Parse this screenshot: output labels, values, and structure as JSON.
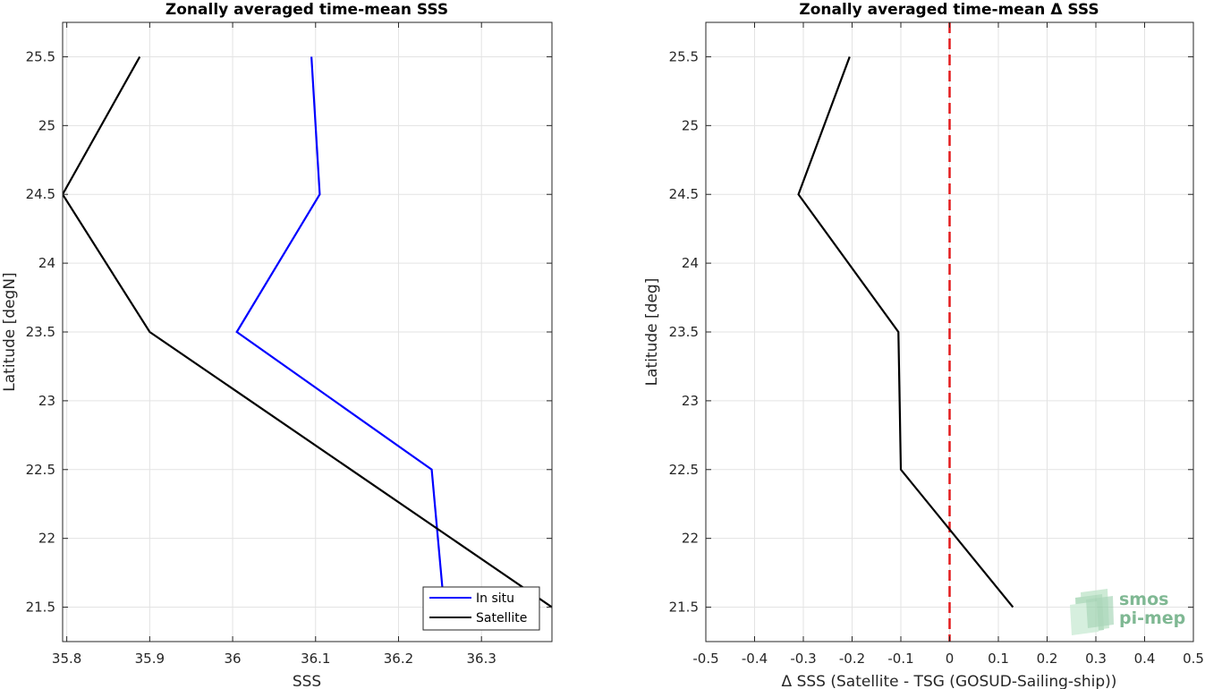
{
  "chart_data": [
    {
      "type": "line",
      "title": "Zonally averaged time-mean SSS",
      "xlabel": "SSS",
      "ylabel": "Latitude [degN]",
      "xlim": [
        35.795,
        36.385
      ],
      "ylim": [
        21.25,
        25.75
      ],
      "xticks": [
        35.8,
        35.9,
        36,
        36.1,
        36.2,
        36.3
      ],
      "xtick_labels": [
        "35.8",
        "35.9",
        "36",
        "36.1",
        "36.2",
        "36.3"
      ],
      "yticks": [
        21.5,
        22,
        22.5,
        23,
        23.5,
        24,
        24.5,
        25,
        25.5
      ],
      "ytick_labels": [
        "21.5",
        "22",
        "22.5",
        "23",
        "23.5",
        "24",
        "24.5",
        "25",
        "25.5"
      ],
      "grid": true,
      "legend_position": "bottom-right",
      "series": [
        {
          "name": "In situ",
          "color": "#0000ff",
          "x": [
            36.095,
            36.105,
            36.005,
            36.24,
            36.255
          ],
          "y": [
            25.5,
            24.5,
            23.5,
            22.5,
            21.5
          ]
        },
        {
          "name": "Satellite",
          "color": "#000000",
          "x": [
            35.888,
            35.795,
            35.9,
            36.385
          ],
          "y": [
            25.5,
            24.5,
            23.5,
            21.5
          ]
        }
      ]
    },
    {
      "type": "line",
      "title": "Zonally averaged time-mean Δ SSS",
      "xlabel": "Δ SSS (Satellite - TSG (GOSUD-Sailing-ship))",
      "ylabel": "Latitude [deg]",
      "xlim": [
        -0.5,
        0.5
      ],
      "ylim": [
        21.25,
        25.75
      ],
      "xticks": [
        -0.5,
        -0.4,
        -0.3,
        -0.2,
        -0.1,
        0,
        0.1,
        0.2,
        0.3,
        0.4,
        0.5
      ],
      "xtick_labels": [
        "-0.5",
        "-0.4",
        "-0.3",
        "-0.2",
        "-0.1",
        "0",
        "0.1",
        "0.2",
        "0.3",
        "0.4",
        "0.5"
      ],
      "yticks": [
        21.5,
        22,
        22.5,
        23,
        23.5,
        24,
        24.5,
        25,
        25.5
      ],
      "ytick_labels": [
        "21.5",
        "22",
        "22.5",
        "23",
        "23.5",
        "24",
        "24.5",
        "25",
        "25.5"
      ],
      "grid": true,
      "reference_line": {
        "x": 0,
        "color": "#e31a1c",
        "style": "dashed"
      },
      "series": [
        {
          "color": "#000000",
          "x": [
            -0.205,
            -0.31,
            -0.105,
            -0.1,
            0.13
          ],
          "y": [
            25.5,
            24.5,
            23.5,
            22.5,
            21.5
          ]
        }
      ]
    }
  ],
  "logo": {
    "line1": "smos",
    "line2": "pi-mep"
  }
}
